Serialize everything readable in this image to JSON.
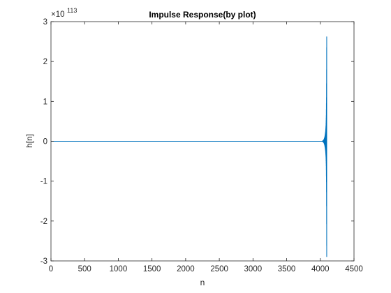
{
  "chart_data": {
    "type": "line",
    "title": "Impulse Response(by plot)",
    "xlabel": "n",
    "ylabel": "h[n]",
    "xlim": [
      0,
      4500
    ],
    "ylim": [
      -3,
      3
    ],
    "y_exponent_times": "×10",
    "y_exponent_power": "113",
    "x_ticks": [
      "0",
      "500",
      "1000",
      "1500",
      "2000",
      "2500",
      "3000",
      "3500",
      "4000",
      "4500"
    ],
    "y_ticks": [
      "-3",
      "-2",
      "-1",
      "0",
      "1",
      "2",
      "3"
    ],
    "grid": false,
    "line_color": "#0072bd",
    "series": [
      {
        "growth_start_n": 4030,
        "last_n": 4095,
        "upper_peak": 2.62,
        "lower_peak": -2.9,
        "envelope": [
          {
            "n": 4030,
            "y": 0.005
          },
          {
            "n": 4045,
            "y": 0.02
          },
          {
            "n": 4055,
            "y": 0.05
          },
          {
            "n": 4065,
            "y": 0.1
          },
          {
            "n": 4072,
            "y": 0.17
          },
          {
            "n": 4078,
            "y": 0.25
          },
          {
            "n": 4084,
            "y": 0.4
          },
          {
            "n": 4088,
            "y": 0.65
          },
          {
            "n": 4091,
            "y": 1.1
          },
          {
            "n": 4093,
            "y": 1.8
          },
          {
            "n": 4095,
            "y": 2.9
          }
        ]
      }
    ]
  }
}
